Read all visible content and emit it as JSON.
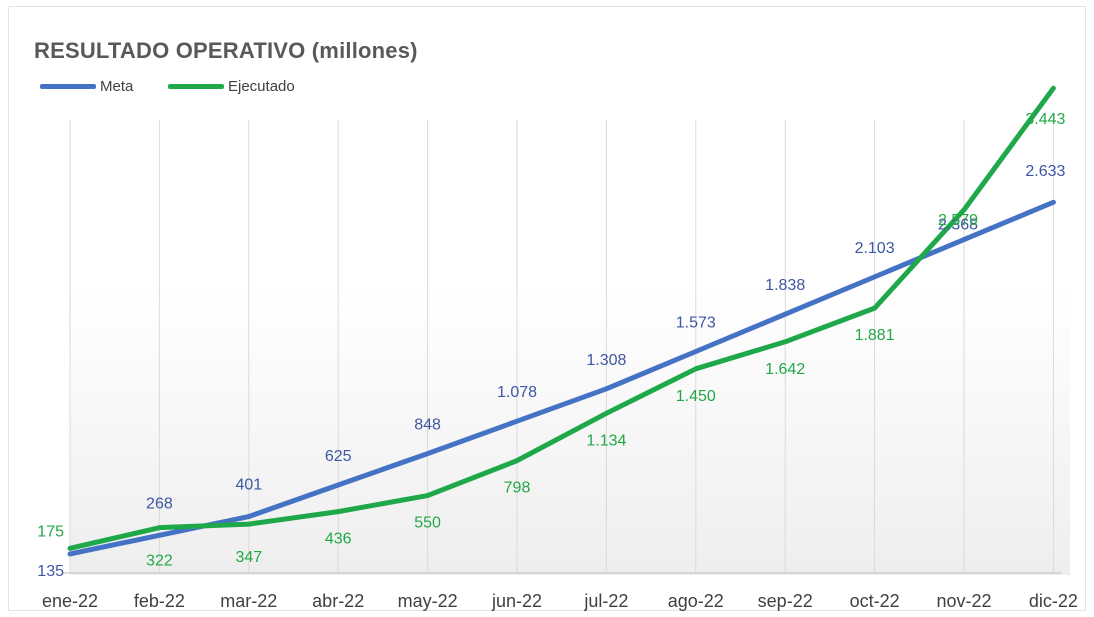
{
  "chart_data": {
    "type": "line",
    "title": "RESULTADO OPERATIVO (millones)",
    "xlabel": "",
    "ylabel": "",
    "categories": [
      "ene-22",
      "feb-22",
      "mar-22",
      "abr-22",
      "may-22",
      "jun-22",
      "jul-22",
      "ago-22",
      "sep-22",
      "oct-22",
      "nov-22",
      "dic-22"
    ],
    "series": [
      {
        "name": "Meta",
        "color": "#4472c4",
        "values": [
          135,
          268,
          401,
          625,
          848,
          1078,
          1308,
          1573,
          1838,
          2103,
          2368,
          2633
        ],
        "labels": [
          "135",
          "268",
          "401",
          "625",
          "848",
          "1.078",
          "1.308",
          "1.573",
          "1.838",
          "2.103",
          "2.368",
          "2.633"
        ]
      },
      {
        "name": "Ejecutado",
        "color": "#1fa84a",
        "values": [
          175,
          322,
          347,
          436,
          550,
          798,
          1134,
          1450,
          1642,
          1881,
          2579,
          3443
        ],
        "labels": [
          "175",
          "322",
          "347",
          "436",
          "550",
          "798",
          "1.134",
          "1.450",
          "1.642",
          "1.881",
          "2.579",
          "3.443"
        ]
      }
    ],
    "ylim": [
      0,
      3700
    ],
    "grid": "vertical",
    "legend": "top-left"
  }
}
